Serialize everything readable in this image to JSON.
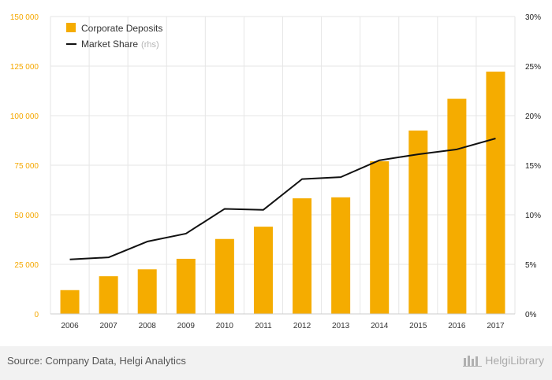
{
  "chart_data": {
    "type": "bar",
    "categories": [
      "2006",
      "2007",
      "2008",
      "2009",
      "2010",
      "2011",
      "2012",
      "2013",
      "2014",
      "2015",
      "2016",
      "2017"
    ],
    "series": [
      {
        "name": "Corporate Deposits",
        "type": "bar",
        "axis": "left",
        "values": [
          12000,
          19000,
          22500,
          27800,
          37800,
          44000,
          58300,
          58800,
          77000,
          92500,
          108500,
          122200
        ]
      },
      {
        "name": "Market Share",
        "legend_suffix": "(rhs)",
        "type": "line",
        "axis": "right",
        "values": [
          5.5,
          5.7,
          7.3,
          8.1,
          10.6,
          10.5,
          13.6,
          13.8,
          15.5,
          16.1,
          16.6,
          17.7
        ]
      }
    ],
    "ylim_left": [
      0,
      150000
    ],
    "yticks_left": [
      "0",
      "25 000",
      "50 000",
      "75 000",
      "100 000",
      "125 000",
      "150 000"
    ],
    "ylim_right": [
      0,
      30
    ],
    "yticks_right": [
      "0%",
      "5%",
      "10%",
      "15%",
      "20%",
      "25%",
      "30%"
    ],
    "grid": true,
    "legend_position": "top-left",
    "colors": {
      "bar": "#f5ac00",
      "line": "#111111",
      "left_ticks": "#f5a800"
    }
  },
  "footer": {
    "source": "Source: Company Data, Helgi Analytics",
    "brand_text": "HelgiLibrary"
  }
}
